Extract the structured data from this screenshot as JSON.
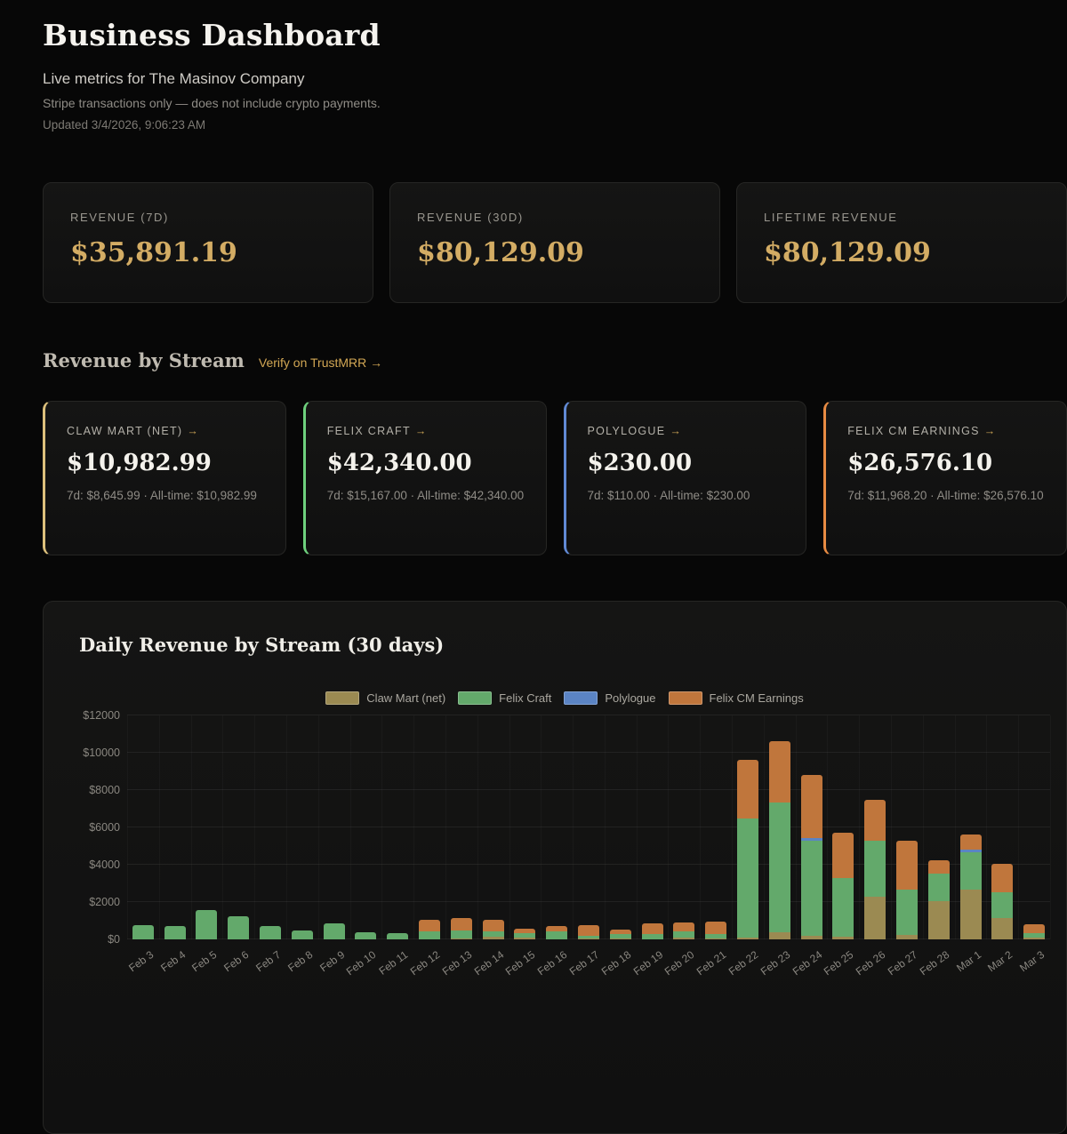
{
  "page": {
    "title": "Business Dashboard",
    "subtitle": "Live metrics for The Masinov Company",
    "note": "Stripe transactions only — does not include crypto payments.",
    "updated": "Updated 3/4/2026, 9:06:23 AM"
  },
  "kpis": [
    {
      "label": "REVENUE (7D)",
      "value": "$35,891.19"
    },
    {
      "label": "REVENUE (30D)",
      "value": "$80,129.09"
    },
    {
      "label": "LIFETIME REVENUE",
      "value": "$80,129.09"
    }
  ],
  "streams_section": {
    "heading": "Revenue by Stream",
    "link": "Verify on TrustMRR →",
    "cards": [
      {
        "label": "CLAW MART (NET)",
        "arrow": "→",
        "value": "$10,982.99",
        "sub": "7d: $8,645.99 · All-time: $10,982.99",
        "accent": "#dcc07c"
      },
      {
        "label": "FELIX CRAFT",
        "arrow": "→",
        "value": "$42,340.00",
        "sub": "7d: $15,167.00 · All-time: $42,340.00",
        "accent": "#6ed07d"
      },
      {
        "label": "POLYLOGUE",
        "arrow": "→",
        "value": "$230.00",
        "sub": "7d: $110.00 · All-time: $230.00",
        "accent": "#6189d4"
      },
      {
        "label": "FELIX CM EARNINGS",
        "arrow": "→",
        "value": "$26,576.10",
        "sub": "7d: $11,968.20 · All-time: $26,576.10",
        "accent": "#e88b43"
      }
    ]
  },
  "chart_data": {
    "type": "bar",
    "stacked": true,
    "title": "Daily Revenue by Stream (30 days)",
    "xlabel": "",
    "ylabel": "",
    "ylim": [
      0,
      12000
    ],
    "ytick_step": 2000,
    "ytick_labels": [
      "$0",
      "$2000",
      "$4000",
      "$6000",
      "$8000",
      "$10000",
      "$12000"
    ],
    "grid": true,
    "legend_position": "top",
    "categories": [
      "Feb 3",
      "Feb 4",
      "Feb 5",
      "Feb 6",
      "Feb 7",
      "Feb 8",
      "Feb 9",
      "Feb 10",
      "Feb 11",
      "Feb 12",
      "Feb 13",
      "Feb 14",
      "Feb 15",
      "Feb 16",
      "Feb 17",
      "Feb 18",
      "Feb 19",
      "Feb 20",
      "Feb 21",
      "Feb 22",
      "Feb 23",
      "Feb 24",
      "Feb 25",
      "Feb 26",
      "Feb 27",
      "Feb 28",
      "Mar 1",
      "Mar 2",
      "Mar 3"
    ],
    "series": [
      {
        "name": "Claw Mart (net)",
        "color": "#9b8a52",
        "values": [
          0,
          0,
          0,
          0,
          0,
          0,
          0,
          0,
          0,
          0,
          60,
          160,
          80,
          0,
          60,
          40,
          0,
          110,
          40,
          100,
          380,
          200,
          130,
          2270,
          240,
          2030,
          2670,
          1150,
          100
        ]
      },
      {
        "name": "Felix Craft",
        "color": "#63a96b",
        "values": [
          760,
          700,
          1550,
          1250,
          730,
          470,
          860,
          400,
          330,
          450,
          420,
          280,
          270,
          430,
          120,
          230,
          300,
          320,
          240,
          6400,
          6950,
          5100,
          3150,
          3000,
          2430,
          1490,
          2020,
          1380,
          250
        ]
      },
      {
        "name": "Polylogue",
        "color": "#5b84c4",
        "values": [
          0,
          0,
          0,
          0,
          0,
          0,
          0,
          0,
          0,
          0,
          0,
          0,
          0,
          0,
          0,
          0,
          0,
          0,
          0,
          0,
          0,
          120,
          0,
          0,
          0,
          0,
          110,
          0,
          0
        ]
      },
      {
        "name": "Felix CM Earnings",
        "color": "#c0763c",
        "values": [
          0,
          0,
          0,
          0,
          0,
          0,
          0,
          0,
          0,
          620,
          660,
          600,
          240,
          270,
          600,
          240,
          555,
          475,
          670,
          3100,
          3290,
          3400,
          2450,
          2210,
          2610,
          720,
          800,
          1500,
          450
        ]
      }
    ]
  }
}
